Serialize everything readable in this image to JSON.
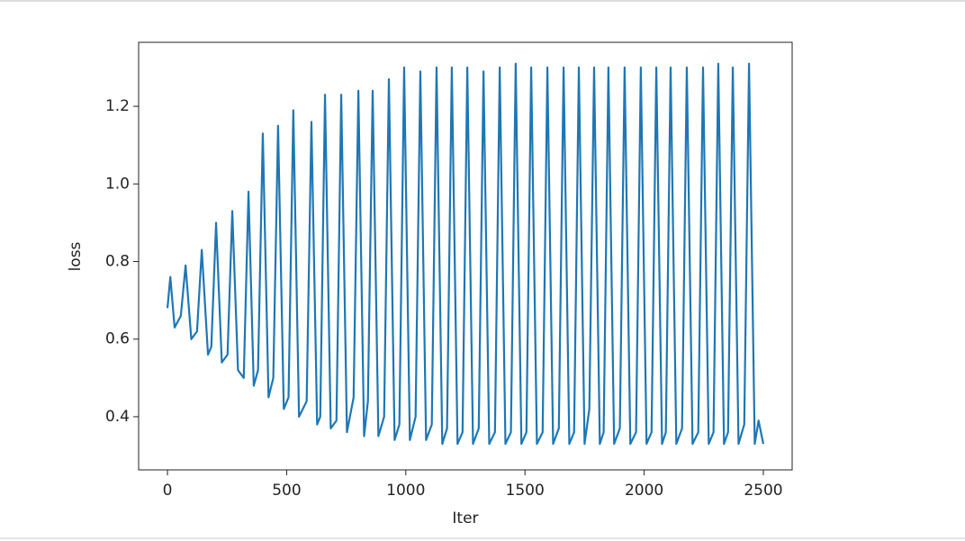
{
  "chart_data": {
    "type": "line",
    "x_label": "Iter",
    "y_label": "loss",
    "x": [
      0,
      12,
      30,
      56,
      76,
      100,
      124,
      144,
      170,
      184,
      204,
      228,
      252,
      272,
      296,
      320,
      340,
      362,
      380,
      400,
      424,
      444,
      464,
      488,
      508,
      528,
      552,
      584,
      604,
      628,
      641,
      661,
      685,
      709,
      729,
      753,
      781,
      801,
      825,
      841,
      861,
      885,
      909,
      929,
      953,
      973,
      993,
      1017,
      1041,
      1061,
      1085,
      1109,
      1129,
      1153,
      1173,
      1193,
      1217,
      1238,
      1258,
      1282,
      1306,
      1326,
      1350,
      1374,
      1394,
      1418,
      1441,
      1461,
      1485,
      1506,
      1526,
      1550,
      1574,
      1594,
      1618,
      1642,
      1662,
      1686,
      1706,
      1726,
      1750,
      1770,
      1790,
      1814,
      1830,
      1850,
      1874,
      1898,
      1918,
      1942,
      1966,
      1986,
      2010,
      2031,
      2051,
      2075,
      2091,
      2111,
      2135,
      2159,
      2179,
      2203,
      2227,
      2247,
      2271,
      2291,
      2311,
      2335,
      2352,
      2372,
      2396,
      2420,
      2440,
      2464,
      2480,
      2500
    ],
    "series": [
      {
        "color": "#1f77b4",
        "values": [
          0.68,
          0.76,
          0.63,
          0.66,
          0.79,
          0.6,
          0.62,
          0.83,
          0.56,
          0.58,
          0.9,
          0.54,
          0.56,
          0.93,
          0.52,
          0.5,
          0.98,
          0.48,
          0.52,
          1.13,
          0.45,
          0.5,
          1.15,
          0.42,
          0.45,
          1.19,
          0.4,
          0.44,
          1.16,
          0.38,
          0.4,
          1.23,
          0.37,
          0.39,
          1.23,
          0.36,
          0.45,
          1.24,
          0.35,
          0.44,
          1.24,
          0.35,
          0.4,
          1.27,
          0.34,
          0.38,
          1.3,
          0.34,
          0.4,
          1.29,
          0.34,
          0.38,
          1.3,
          0.33,
          0.37,
          1.3,
          0.33,
          0.36,
          1.3,
          0.33,
          0.37,
          1.29,
          0.33,
          0.36,
          1.3,
          0.33,
          0.36,
          1.31,
          0.33,
          0.36,
          1.3,
          0.33,
          0.36,
          1.3,
          0.33,
          0.37,
          1.3,
          0.33,
          0.36,
          1.3,
          0.33,
          0.42,
          1.3,
          0.33,
          0.36,
          1.3,
          0.33,
          0.37,
          1.3,
          0.33,
          0.36,
          1.3,
          0.33,
          0.36,
          1.3,
          0.33,
          0.36,
          1.3,
          0.33,
          0.37,
          1.3,
          0.33,
          0.36,
          1.3,
          0.33,
          0.36,
          1.31,
          0.33,
          0.36,
          1.3,
          0.33,
          0.38,
          1.31,
          0.33,
          0.39,
          0.33
        ]
      }
    ],
    "xlim": [
      -121,
      2621
    ],
    "ylim": [
      0.263,
      1.365
    ],
    "xticks": [
      0,
      500,
      1000,
      1500,
      2000,
      2500
    ],
    "yticks": [
      0.4,
      0.6,
      0.8,
      {
        "value": 1,
        "label": "1.0"
      },
      1.2
    ]
  }
}
